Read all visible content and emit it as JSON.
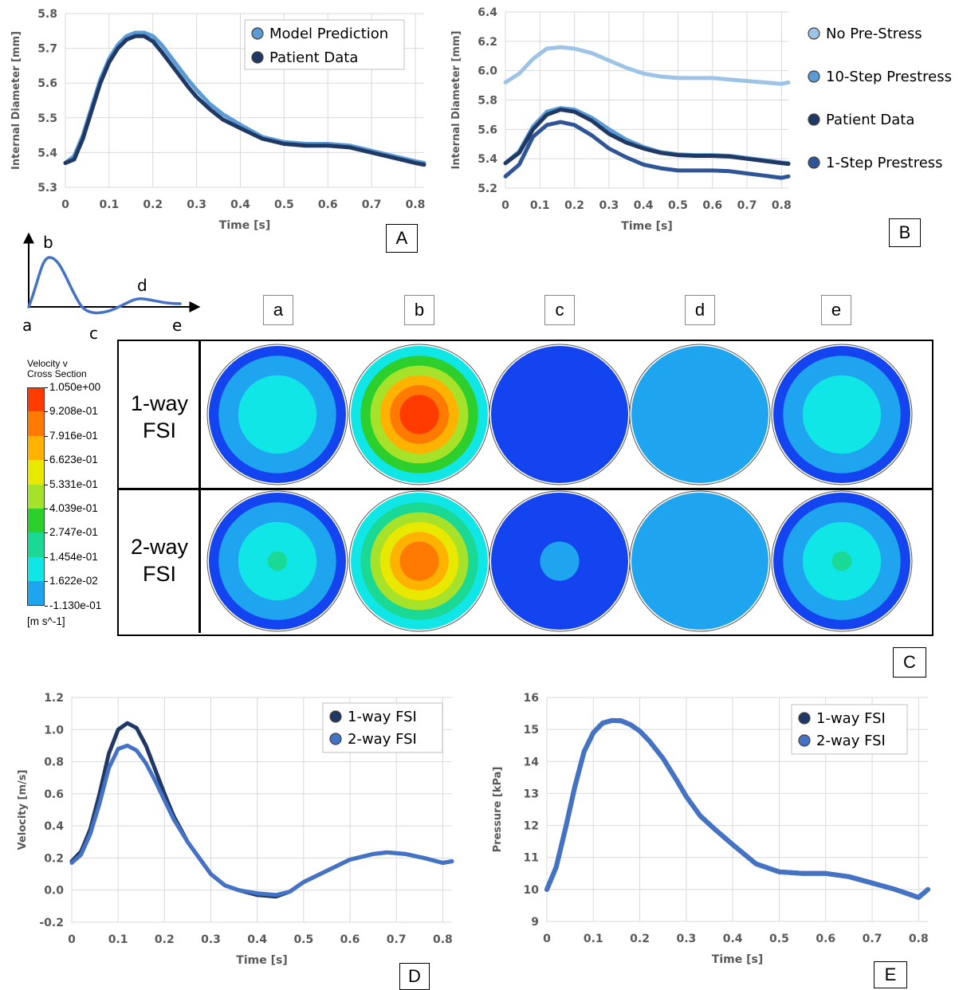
{
  "chart_data": [
    {
      "panel": "A",
      "type": "line",
      "xlabel": "Time [s]",
      "ylabel": "Internal Diameter [mm]",
      "xlim": [
        0,
        0.82
      ],
      "ylim": [
        5.3,
        5.8
      ],
      "xticks": [
        "0",
        "0.1",
        "0.2",
        "0.3",
        "0.4",
        "0.5",
        "0.6",
        "0.7",
        "0.8"
      ],
      "yticks": [
        "5.3",
        "5.4",
        "5.5",
        "5.6",
        "5.7",
        "5.8"
      ],
      "grid": true,
      "legend_position": "top-right",
      "series": [
        {
          "name": "Model Prediction",
          "color": "#5b9bd5",
          "x": [
            0,
            0.02,
            0.04,
            0.06,
            0.08,
            0.1,
            0.12,
            0.14,
            0.16,
            0.18,
            0.2,
            0.22,
            0.25,
            0.28,
            0.3,
            0.33,
            0.36,
            0.4,
            0.45,
            0.5,
            0.55,
            0.6,
            0.65,
            0.7,
            0.75,
            0.8,
            0.82
          ],
          "y": [
            5.37,
            5.39,
            5.45,
            5.53,
            5.61,
            5.67,
            5.71,
            5.735,
            5.745,
            5.745,
            5.735,
            5.71,
            5.66,
            5.61,
            5.58,
            5.54,
            5.51,
            5.48,
            5.445,
            5.43,
            5.425,
            5.425,
            5.42,
            5.405,
            5.39,
            5.375,
            5.37
          ]
        },
        {
          "name": "Patient Data",
          "color": "#203864",
          "x": [
            0,
            0.02,
            0.04,
            0.06,
            0.08,
            0.1,
            0.12,
            0.14,
            0.16,
            0.18,
            0.2,
            0.22,
            0.25,
            0.28,
            0.3,
            0.33,
            0.36,
            0.4,
            0.45,
            0.5,
            0.55,
            0.6,
            0.65,
            0.7,
            0.75,
            0.8,
            0.82
          ],
          "y": [
            5.37,
            5.38,
            5.44,
            5.52,
            5.6,
            5.66,
            5.7,
            5.725,
            5.735,
            5.735,
            5.72,
            5.69,
            5.64,
            5.59,
            5.56,
            5.525,
            5.495,
            5.47,
            5.44,
            5.425,
            5.42,
            5.42,
            5.415,
            5.4,
            5.385,
            5.37,
            5.365
          ]
        }
      ]
    },
    {
      "panel": "B",
      "type": "line",
      "xlabel": "Time [s]",
      "ylabel": "Internal Diameter [mm]",
      "xlim": [
        0,
        0.82
      ],
      "ylim": [
        5.2,
        6.4
      ],
      "xticks": [
        "0",
        "0.1",
        "0.2",
        "0.3",
        "0.4",
        "0.5",
        "0.6",
        "0.7",
        "0.8"
      ],
      "yticks": [
        "5.2",
        "5.4",
        "5.6",
        "5.8",
        "6.0",
        "6.2",
        "6.4"
      ],
      "grid": true,
      "legend_position": "right",
      "series": [
        {
          "name": "No Pre-Stress",
          "color": "#9dc3e6",
          "x": [
            0,
            0.04,
            0.08,
            0.12,
            0.16,
            0.2,
            0.25,
            0.3,
            0.35,
            0.4,
            0.45,
            0.5,
            0.55,
            0.6,
            0.65,
            0.7,
            0.75,
            0.8,
            0.82
          ],
          "y": [
            5.92,
            5.98,
            6.08,
            6.15,
            6.16,
            6.15,
            6.12,
            6.07,
            6.02,
            5.98,
            5.96,
            5.95,
            5.95,
            5.95,
            5.94,
            5.93,
            5.92,
            5.91,
            5.92
          ]
        },
        {
          "name": "10-Step Prestress",
          "color": "#5b9bd5",
          "x": [
            0,
            0.04,
            0.08,
            0.12,
            0.16,
            0.2,
            0.25,
            0.3,
            0.35,
            0.4,
            0.45,
            0.5,
            0.55,
            0.6,
            0.65,
            0.7,
            0.75,
            0.8,
            0.82
          ],
          "y": [
            5.37,
            5.45,
            5.62,
            5.72,
            5.745,
            5.735,
            5.68,
            5.6,
            5.53,
            5.48,
            5.445,
            5.43,
            5.425,
            5.425,
            5.42,
            5.405,
            5.39,
            5.375,
            5.37
          ]
        },
        {
          "name": "Patient Data",
          "color": "#203864",
          "x": [
            0,
            0.04,
            0.08,
            0.12,
            0.16,
            0.2,
            0.25,
            0.3,
            0.35,
            0.4,
            0.45,
            0.5,
            0.55,
            0.6,
            0.65,
            0.7,
            0.75,
            0.8,
            0.82
          ],
          "y": [
            5.37,
            5.44,
            5.6,
            5.7,
            5.735,
            5.72,
            5.66,
            5.57,
            5.51,
            5.47,
            5.44,
            5.425,
            5.42,
            5.42,
            5.415,
            5.4,
            5.385,
            5.37,
            5.365
          ]
        },
        {
          "name": "1-Step Prestress",
          "color": "#2f5597",
          "x": [
            0,
            0.04,
            0.08,
            0.12,
            0.16,
            0.2,
            0.25,
            0.3,
            0.35,
            0.4,
            0.45,
            0.5,
            0.55,
            0.6,
            0.65,
            0.7,
            0.75,
            0.8,
            0.82
          ],
          "y": [
            5.28,
            5.36,
            5.55,
            5.63,
            5.65,
            5.63,
            5.56,
            5.47,
            5.41,
            5.36,
            5.335,
            5.32,
            5.32,
            5.32,
            5.315,
            5.3,
            5.285,
            5.27,
            5.28
          ]
        }
      ]
    },
    {
      "panel": "D",
      "type": "line",
      "xlabel": "Time [s]",
      "ylabel": "Velocity [m/s]",
      "xlim": [
        0,
        0.82
      ],
      "ylim": [
        -0.2,
        1.2
      ],
      "xticks": [
        "0",
        "0.1",
        "0.2",
        "0.3",
        "0.4",
        "0.5",
        "0.6",
        "0.7",
        "0.8"
      ],
      "yticks": [
        "-0.2",
        "0.0",
        "0.2",
        "0.4",
        "0.6",
        "0.8",
        "1.0",
        "1.2"
      ],
      "grid": true,
      "legend_position": "top-right",
      "series": [
        {
          "name": "1-way FSI",
          "color": "#203864",
          "x": [
            0,
            0.02,
            0.04,
            0.06,
            0.08,
            0.1,
            0.12,
            0.14,
            0.16,
            0.18,
            0.2,
            0.22,
            0.25,
            0.28,
            0.3,
            0.33,
            0.36,
            0.4,
            0.44,
            0.47,
            0.5,
            0.55,
            0.6,
            0.65,
            0.68,
            0.72,
            0.76,
            0.8,
            0.82
          ],
          "y": [
            0.18,
            0.24,
            0.38,
            0.6,
            0.85,
            1.0,
            1.04,
            1.01,
            0.9,
            0.75,
            0.6,
            0.46,
            0.3,
            0.18,
            0.1,
            0.03,
            0.0,
            -0.03,
            -0.04,
            -0.01,
            0.05,
            0.12,
            0.19,
            0.225,
            0.235,
            0.225,
            0.2,
            0.17,
            0.18
          ]
        },
        {
          "name": "2-way FSI",
          "color": "#4472c4",
          "x": [
            0,
            0.02,
            0.04,
            0.06,
            0.08,
            0.1,
            0.12,
            0.14,
            0.16,
            0.18,
            0.2,
            0.22,
            0.25,
            0.28,
            0.3,
            0.33,
            0.36,
            0.4,
            0.44,
            0.47,
            0.5,
            0.55,
            0.6,
            0.65,
            0.68,
            0.72,
            0.76,
            0.8,
            0.82
          ],
          "y": [
            0.17,
            0.22,
            0.35,
            0.54,
            0.76,
            0.88,
            0.9,
            0.87,
            0.79,
            0.68,
            0.56,
            0.44,
            0.3,
            0.18,
            0.1,
            0.03,
            0.0,
            -0.02,
            -0.03,
            -0.01,
            0.05,
            0.12,
            0.19,
            0.225,
            0.235,
            0.225,
            0.2,
            0.17,
            0.18
          ]
        }
      ]
    },
    {
      "panel": "E",
      "type": "line",
      "xlabel": "Time [s]",
      "ylabel": "Pressure [kPa]",
      "xlim": [
        0,
        0.82
      ],
      "ylim": [
        9,
        16
      ],
      "xticks": [
        "0",
        "0.1",
        "0.2",
        "0.3",
        "0.4",
        "0.5",
        "0.6",
        "0.7",
        "0.8"
      ],
      "yticks": [
        "9",
        "10",
        "11",
        "12",
        "13",
        "14",
        "15",
        "16"
      ],
      "grid": true,
      "legend_position": "top-right",
      "series": [
        {
          "name": "1-way FSI",
          "color": "#203864",
          "x": [
            0,
            0.02,
            0.04,
            0.06,
            0.08,
            0.1,
            0.12,
            0.14,
            0.16,
            0.18,
            0.2,
            0.22,
            0.25,
            0.28,
            0.3,
            0.33,
            0.36,
            0.4,
            0.45,
            0.5,
            0.55,
            0.6,
            0.65,
            0.7,
            0.75,
            0.8,
            0.82
          ],
          "y": [
            10.0,
            10.7,
            11.9,
            13.2,
            14.3,
            14.9,
            15.2,
            15.28,
            15.27,
            15.15,
            14.95,
            14.65,
            14.1,
            13.4,
            12.9,
            12.3,
            11.9,
            11.4,
            10.8,
            10.55,
            10.5,
            10.5,
            10.4,
            10.2,
            10.0,
            9.75,
            10.0
          ]
        },
        {
          "name": "2-way FSI",
          "color": "#4472c4",
          "x": [
            0,
            0.02,
            0.04,
            0.06,
            0.08,
            0.1,
            0.12,
            0.14,
            0.16,
            0.18,
            0.2,
            0.22,
            0.25,
            0.28,
            0.3,
            0.33,
            0.36,
            0.4,
            0.45,
            0.5,
            0.55,
            0.6,
            0.65,
            0.7,
            0.75,
            0.8,
            0.82
          ],
          "y": [
            10.0,
            10.7,
            11.9,
            13.2,
            14.3,
            14.9,
            15.2,
            15.28,
            15.27,
            15.15,
            14.95,
            14.65,
            14.1,
            13.4,
            12.9,
            12.3,
            11.9,
            11.4,
            10.8,
            10.55,
            10.5,
            10.5,
            10.4,
            10.2,
            10.0,
            9.75,
            10.0
          ]
        }
      ]
    },
    {
      "panel": "C",
      "type": "heatmap",
      "rows": [
        "1-way\nFSI",
        "2-way\nFSI"
      ],
      "columns": [
        "a",
        "b",
        "c",
        "d",
        "e"
      ],
      "colorbar": {
        "title": [
          "Velocity v",
          "Cross Section"
        ],
        "unit": "[m s^-1]",
        "ticks": [
          "1.050e+00",
          "9.208e-01",
          "7.916e-01",
          "6.623e-01",
          "5.331e-01",
          "4.039e-01",
          "2.747e-01",
          "1.454e-01",
          "1.622e-02",
          "-1.130e-01"
        ],
        "colors": [
          "#ff3b00",
          "#ff7a00",
          "#ffb300",
          "#e8e800",
          "#a6e22a",
          "#2ccf2c",
          "#19d995",
          "#11e6e6",
          "#1fa5f0",
          "#1444f0"
        ]
      },
      "center_velocity": [
        [
          0.21,
          1.03,
          -0.02,
          0.06,
          0.21
        ],
        [
          0.25,
          0.88,
          0.02,
          0.08,
          0.25
        ]
      ],
      "wall_velocity": [
        [
          -0.02,
          0.15,
          -0.11,
          0.06,
          -0.02
        ],
        [
          -0.02,
          0.12,
          -0.1,
          0.06,
          -0.02
        ]
      ]
    }
  ],
  "panel_letters": {
    "A": "A",
    "B": "B",
    "C": "C",
    "D": "D",
    "E": "E"
  },
  "waveform_sketch": {
    "labels": [
      "a",
      "b",
      "c",
      "d",
      "e"
    ],
    "color": "#4472c4"
  }
}
